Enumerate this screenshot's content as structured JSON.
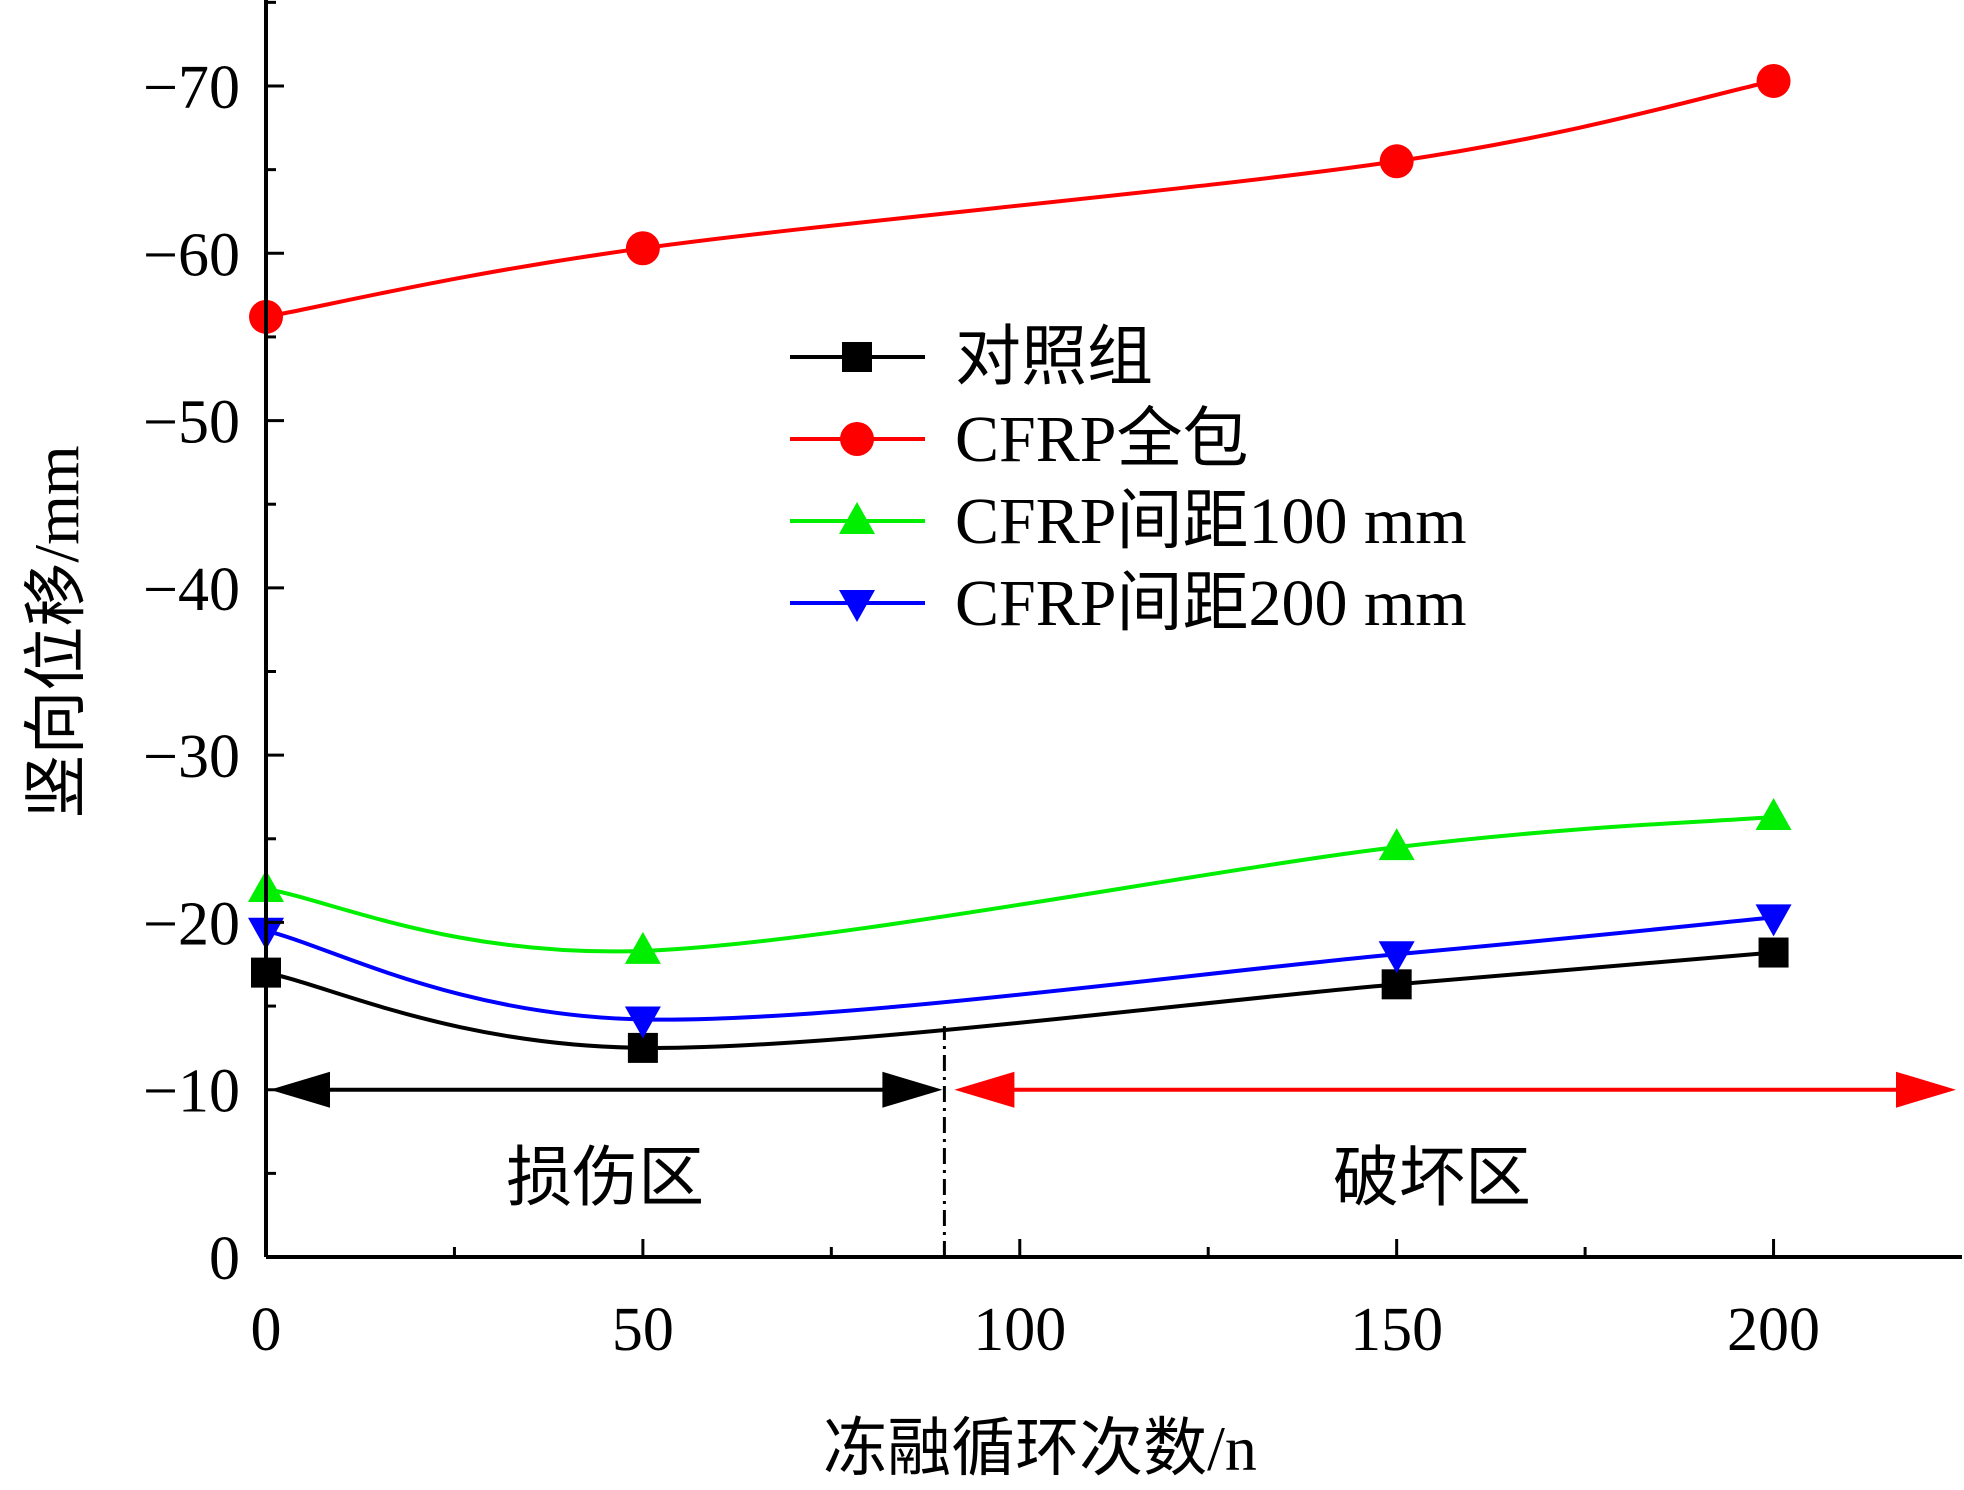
{
  "chart_data": {
    "type": "line",
    "title": "",
    "xlabel": "冻融循环次数/n",
    "ylabel": "竖向位移/mm",
    "xlim": [
      0,
      225
    ],
    "ylim": [
      0,
      -75
    ],
    "y_inverted": true,
    "x_ticks": [
      "0",
      "50",
      "100",
      "150",
      "200"
    ],
    "y_ticks": [
      "0",
      "−10",
      "−20",
      "−30",
      "−40",
      "−50",
      "−60",
      "−70"
    ],
    "x": [
      0,
      50,
      150,
      200
    ],
    "legend_position": "center",
    "series": [
      {
        "name": "对照组",
        "marker": "square",
        "color": "#000000",
        "values": [
          -17.0,
          -12.5,
          -16.3,
          -18.2
        ]
      },
      {
        "name": "CFRP全包",
        "marker": "circle",
        "color": "#ff0000",
        "values": [
          -56.2,
          -60.3,
          -65.5,
          -70.3
        ]
      },
      {
        "name": "CFRP间距100 mm",
        "marker": "triangle-up",
        "color": "#00ee00",
        "values": [
          -22.0,
          -18.3,
          -24.5,
          -26.3
        ]
      },
      {
        "name": "CFRP间距200 mm",
        "marker": "triangle-down",
        "color": "#0000ff",
        "values": [
          -19.5,
          -14.2,
          -18.1,
          -20.3
        ]
      }
    ],
    "annotations": {
      "boundary_x": 90,
      "arrow_y": -10,
      "zones": [
        {
          "label": "损伤区",
          "color": "#000000",
          "from_x": 0,
          "to_x": 90
        },
        {
          "label": "破坏区",
          "color": "#ff0000",
          "from_x": 90,
          "to_x": 225
        }
      ]
    }
  }
}
